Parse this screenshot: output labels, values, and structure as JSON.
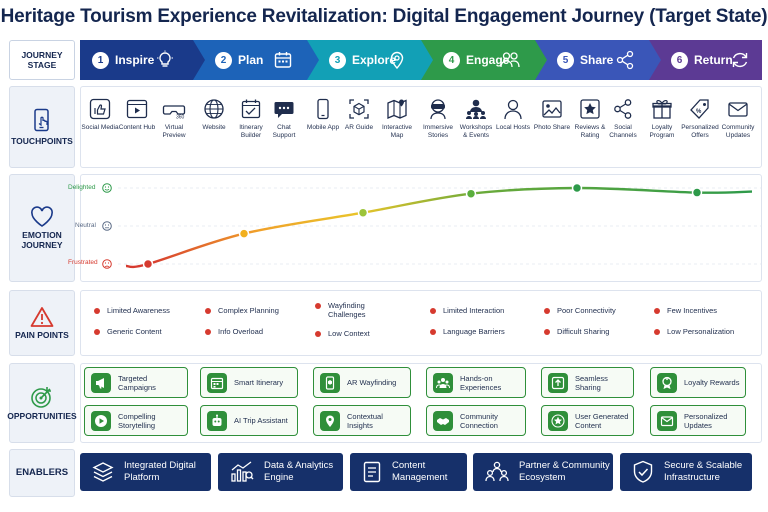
{
  "title": "Heritage Tourism Experience Revitalization: Digital Engagement Journey (Target State)",
  "row_labels": {
    "journey_stage": "JOURNEY STAGE",
    "touchpoints": "TOUCHPOINTS",
    "emotion": "EMOTION JOURNEY",
    "pain_points": "PAIN POINTS",
    "opportunities": "OPPORTUNITIES",
    "enablers": "ENABLERS"
  },
  "stages": [
    {
      "num": "1",
      "label": "Inspire",
      "color": "#1a3a8a",
      "icon": "lightbulb-icon"
    },
    {
      "num": "2",
      "label": "Plan",
      "color": "#1d63b8",
      "icon": "calendar-icon"
    },
    {
      "num": "3",
      "label": "Explore",
      "color": "#12a0b6",
      "icon": "map-pin-icon"
    },
    {
      "num": "4",
      "label": "Engage",
      "color": "#2e9a4a",
      "icon": "people-icon"
    },
    {
      "num": "5",
      "label": "Share",
      "color": "#3a56b8",
      "icon": "share-icon"
    },
    {
      "num": "6",
      "label": "Return",
      "color": "#5c3a94",
      "icon": "refresh-icon"
    }
  ],
  "touchpoints": [
    [
      "Social Media",
      "Content Hub",
      "Virtual Preview"
    ],
    [
      "Website",
      "Itinerary Builder",
      "Chat Support"
    ],
    [
      "Mobile App",
      "AR Guide",
      "Interactive Map"
    ],
    [
      "Immersive Stories",
      "Workshops & Events",
      "Local Hosts"
    ],
    [
      "Photo Share",
      "Reviews & Rating",
      "Social Channels"
    ],
    [
      "Loyalty Program",
      "Personalized Offers",
      "Community Updates"
    ]
  ],
  "emotion": {
    "levels": [
      "Delighted",
      "Neutral",
      "Frustrated"
    ],
    "level_colors": [
      "#2e9a4a",
      "#5a6a85",
      "#d63a2f"
    ],
    "scores": [
      -1.0,
      -0.2,
      0.35,
      0.85,
      1.0,
      0.88
    ]
  },
  "pain_points": [
    [
      "Limited Awareness",
      "Generic Content"
    ],
    [
      "Complex Planning",
      "Info Overload"
    ],
    [
      "Wayfinding Challenges",
      "Low Context"
    ],
    [
      "Limited Interaction",
      "Language Barriers"
    ],
    [
      "Poor Connectivity",
      "Difficult Sharing"
    ],
    [
      "Few Incentives",
      "Low Personalization"
    ]
  ],
  "opportunities": [
    [
      {
        "label": "Targeted Campaigns",
        "icon": "megaphone-icon"
      },
      {
        "label": "Compelling Storytelling",
        "icon": "video-play-icon"
      }
    ],
    [
      {
        "label": "Smart Itinerary",
        "icon": "itinerary-icon"
      },
      {
        "label": "AI Trip Assistant",
        "icon": "robot-icon"
      }
    ],
    [
      {
        "label": "AR Wayfinding",
        "icon": "phone-ar-icon"
      },
      {
        "label": "Contextual Insights",
        "icon": "location-insight-icon"
      }
    ],
    [
      {
        "label": "Hands-on Experiences",
        "icon": "group-icon"
      },
      {
        "label": "Community Connection",
        "icon": "handshake-icon"
      }
    ],
    [
      {
        "label": "Seamless Sharing",
        "icon": "upload-icon"
      },
      {
        "label": "User Generated Content",
        "icon": "star-badge-icon"
      }
    ],
    [
      {
        "label": "Loyalty Rewards",
        "icon": "award-icon"
      },
      {
        "label": "Personalized Updates",
        "icon": "mail-icon"
      }
    ]
  ],
  "enablers": [
    {
      "label": "Integrated Digital Platform",
      "icon": "layers-icon"
    },
    {
      "label": "Data & Analytics Engine",
      "icon": "analytics-icon"
    },
    {
      "label": "Content Management",
      "icon": "document-icon"
    },
    {
      "label": "Partner & Community Ecosystem",
      "icon": "partners-icon"
    },
    {
      "label": "Secure & Scalable Infrastructure",
      "icon": "shield-check-icon"
    }
  ]
}
